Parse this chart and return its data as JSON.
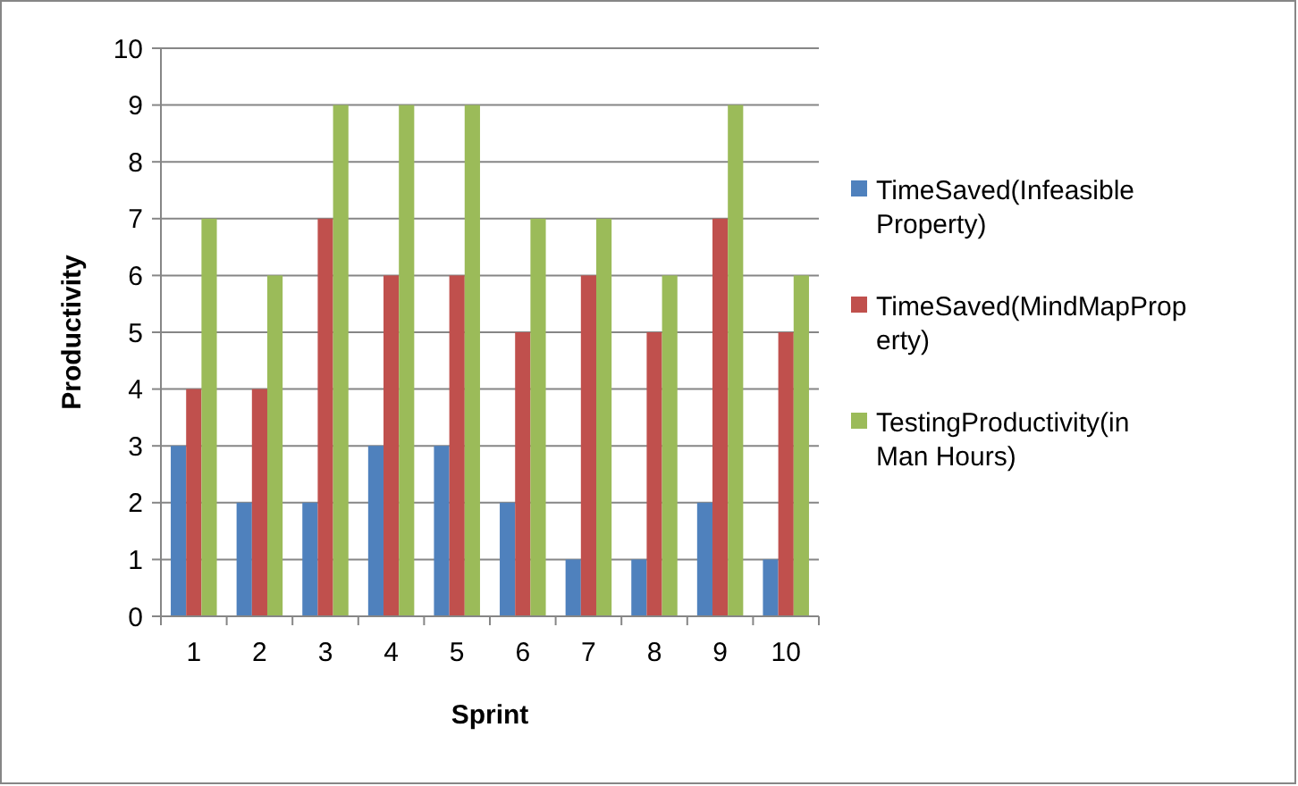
{
  "chart_data": {
    "type": "bar",
    "xlabel": "Sprint",
    "ylabel": "Productivity",
    "categories": [
      "1",
      "2",
      "3",
      "4",
      "5",
      "6",
      "7",
      "8",
      "9",
      "10"
    ],
    "series": [
      {
        "name": "TimeSaved(Infeasible Property)",
        "color": "#4f81bd",
        "values": [
          3,
          2,
          2,
          3,
          3,
          2,
          1,
          1,
          2,
          1
        ]
      },
      {
        "name": "TimeSaved(MindMapProperty)",
        "color": "#c0504d",
        "values": [
          4,
          4,
          7,
          6,
          6,
          5,
          6,
          5,
          7,
          5
        ]
      },
      {
        "name": "TestingProductivity(in Man Hours)",
        "color": "#9bbb59",
        "values": [
          7,
          6,
          9,
          9,
          9,
          7,
          7,
          6,
          9,
          6
        ]
      }
    ],
    "ylim": [
      0,
      10
    ],
    "yticks": [
      0,
      1,
      2,
      3,
      4,
      5,
      6,
      7,
      8,
      9,
      10
    ],
    "grid": "y",
    "legend": "right"
  }
}
